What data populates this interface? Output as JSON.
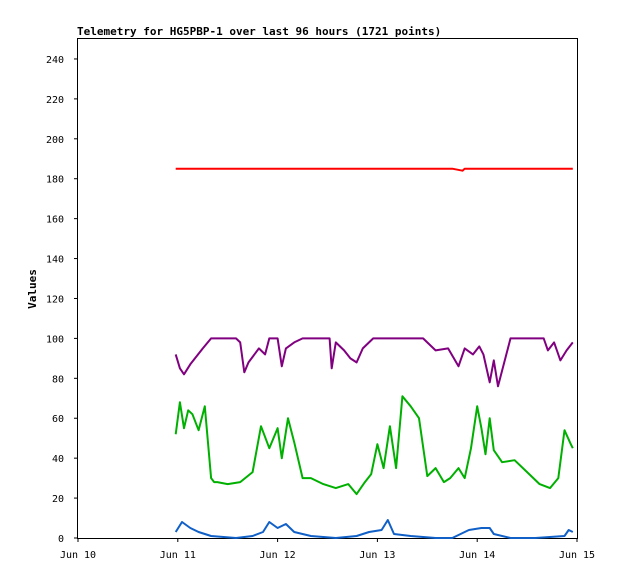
{
  "chart_data": {
    "type": "line",
    "title": "Telemetry for HG5PBP-1 over last 96 hours (1721 points)",
    "xlabel": "",
    "ylabel": "Values",
    "xlim": [
      "2024-06-10",
      "2024-06-15"
    ],
    "ylim": [
      0,
      250
    ],
    "x_tick_labels": [
      "Jun 10",
      "Jun 11",
      "Jun 12",
      "Jun 13",
      "Jun 14",
      "Jun 15"
    ],
    "x_tick_values": [
      "2024-06-10",
      "2024-06-11",
      "2024-06-12",
      "2024-06-13",
      "2024-06-14",
      "2024-06-15"
    ],
    "y_ticks": [
      0,
      20,
      40,
      60,
      80,
      100,
      120,
      140,
      160,
      180,
      200,
      220,
      240
    ],
    "grid": false,
    "legend": "none",
    "series": [
      {
        "color": "#ff0000",
        "x": [
          "2024-06-10T23:30",
          "2024-06-11T06:00",
          "2024-06-11T12:00",
          "2024-06-11T18:00",
          "2024-06-12T00:00",
          "2024-06-12T06:00",
          "2024-06-12T12:00",
          "2024-06-12T18:00",
          "2024-06-13T00:00",
          "2024-06-13T06:00",
          "2024-06-13T12:00",
          "2024-06-13T18:00",
          "2024-06-13T20:30",
          "2024-06-13T21:00",
          "2024-06-14T00:00",
          "2024-06-14T06:00",
          "2024-06-14T12:00",
          "2024-06-14T18:00",
          "2024-06-14T23:00"
        ],
        "y": [
          185,
          185,
          185,
          185,
          185,
          185,
          185,
          185,
          185,
          185,
          185,
          185,
          184,
          185,
          185,
          185,
          185,
          185,
          185
        ]
      },
      {
        "color": "#800080",
        "x": [
          "2024-06-10T23:30",
          "2024-06-11T00:30",
          "2024-06-11T01:30",
          "2024-06-11T03:00",
          "2024-06-11T04:30",
          "2024-06-11T06:00",
          "2024-06-11T08:00",
          "2024-06-11T11:00",
          "2024-06-11T14:00",
          "2024-06-11T15:00",
          "2024-06-11T16:00",
          "2024-06-11T17:00",
          "2024-06-11T19:30",
          "2024-06-11T21:00",
          "2024-06-11T22:00",
          "2024-06-12T00:00",
          "2024-06-12T01:00",
          "2024-06-12T02:00",
          "2024-06-12T04:00",
          "2024-06-12T06:00",
          "2024-06-12T09:00",
          "2024-06-12T12:30",
          "2024-06-12T13:00",
          "2024-06-12T14:00",
          "2024-06-12T16:00",
          "2024-06-12T17:30",
          "2024-06-12T19:00",
          "2024-06-12T20:30",
          "2024-06-12T23:00",
          "2024-06-13T02:00",
          "2024-06-13T05:00",
          "2024-06-13T08:00",
          "2024-06-13T11:00",
          "2024-06-13T14:00",
          "2024-06-13T17:00",
          "2024-06-13T19:30",
          "2024-06-13T21:00",
          "2024-06-13T23:00",
          "2024-06-14T00:30",
          "2024-06-14T01:30",
          "2024-06-14T03:00",
          "2024-06-14T04:00",
          "2024-06-14T05:00",
          "2024-06-14T08:00",
          "2024-06-14T12:00",
          "2024-06-14T16:00",
          "2024-06-14T17:00",
          "2024-06-14T18:30",
          "2024-06-14T20:00",
          "2024-06-14T21:30",
          "2024-06-14T23:00"
        ],
        "y": [
          92,
          85,
          82,
          87,
          91,
          95,
          100,
          100,
          100,
          98,
          83,
          88,
          95,
          92,
          100,
          100,
          86,
          95,
          98,
          100,
          100,
          100,
          85,
          98,
          94,
          90,
          88,
          95,
          100,
          100,
          100,
          100,
          100,
          94,
          95,
          86,
          95,
          92,
          96,
          92,
          78,
          89,
          76,
          100,
          100,
          100,
          94,
          98,
          89,
          94,
          98
        ]
      },
      {
        "color": "#00b000",
        "x": [
          "2024-06-10T23:30",
          "2024-06-11T00:30",
          "2024-06-11T01:30",
          "2024-06-11T02:30",
          "2024-06-11T03:30",
          "2024-06-11T05:00",
          "2024-06-11T06:30",
          "2024-06-11T08:00",
          "2024-06-11T08:45",
          "2024-06-11T09:30",
          "2024-06-11T12:00",
          "2024-06-11T15:00",
          "2024-06-11T18:00",
          "2024-06-11T20:00",
          "2024-06-11T22:00",
          "2024-06-12T00:00",
          "2024-06-12T01:00",
          "2024-06-12T02:30",
          "2024-06-12T04:00",
          "2024-06-12T06:00",
          "2024-06-12T08:00",
          "2024-06-12T11:00",
          "2024-06-12T14:00",
          "2024-06-12T17:00",
          "2024-06-12T19:00",
          "2024-06-12T21:00",
          "2024-06-12T22:30",
          "2024-06-13T00:00",
          "2024-06-13T01:30",
          "2024-06-13T03:00",
          "2024-06-13T04:30",
          "2024-06-13T06:00",
          "2024-06-13T08:00",
          "2024-06-13T10:00",
          "2024-06-13T12:00",
          "2024-06-13T14:00",
          "2024-06-13T16:00",
          "2024-06-13T17:30",
          "2024-06-13T19:30",
          "2024-06-13T21:00",
          "2024-06-13T22:30",
          "2024-06-14T00:00",
          "2024-06-14T01:00",
          "2024-06-14T02:00",
          "2024-06-14T03:00",
          "2024-06-14T04:00",
          "2024-06-14T06:00",
          "2024-06-14T09:00",
          "2024-06-14T12:00",
          "2024-06-14T15:00",
          "2024-06-14T17:30",
          "2024-06-14T19:30",
          "2024-06-14T21:00",
          "2024-06-14T22:30",
          "2024-06-14T23:00"
        ],
        "y": [
          52,
          68,
          55,
          64,
          62,
          54,
          66,
          30,
          28,
          28,
          27,
          28,
          33,
          56,
          45,
          55,
          40,
          60,
          48,
          30,
          30,
          27,
          25,
          27,
          22,
          28,
          32,
          47,
          35,
          56,
          35,
          71,
          66,
          60,
          31,
          35,
          28,
          30,
          35,
          30,
          45,
          66,
          55,
          42,
          60,
          44,
          38,
          39,
          33,
          27,
          25,
          30,
          54,
          47,
          45
        ]
      },
      {
        "color": "#1060c8",
        "x": [
          "2024-06-10T23:30",
          "2024-06-11T01:00",
          "2024-06-11T03:00",
          "2024-06-11T05:00",
          "2024-06-11T08:00",
          "2024-06-11T14:00",
          "2024-06-11T18:00",
          "2024-06-11T20:30",
          "2024-06-11T22:00",
          "2024-06-12T00:00",
          "2024-06-12T02:00",
          "2024-06-12T04:00",
          "2024-06-12T08:00",
          "2024-06-12T14:00",
          "2024-06-12T19:00",
          "2024-06-12T22:00",
          "2024-06-13T01:00",
          "2024-06-13T02:30",
          "2024-06-13T04:00",
          "2024-06-13T08:00",
          "2024-06-13T14:00",
          "2024-06-13T18:00",
          "2024-06-13T20:00",
          "2024-06-13T22:00",
          "2024-06-14T01:00",
          "2024-06-14T03:00",
          "2024-06-14T04:00",
          "2024-06-14T08:00",
          "2024-06-14T14:00",
          "2024-06-14T21:00",
          "2024-06-14T22:00",
          "2024-06-14T23:00"
        ],
        "y": [
          3,
          8,
          5,
          3,
          1,
          0,
          1,
          3,
          8,
          5,
          7,
          3,
          1,
          0,
          1,
          3,
          4,
          9,
          2,
          1,
          0,
          0,
          2,
          4,
          5,
          5,
          2,
          0,
          0,
          1,
          4,
          3
        ]
      }
    ]
  }
}
